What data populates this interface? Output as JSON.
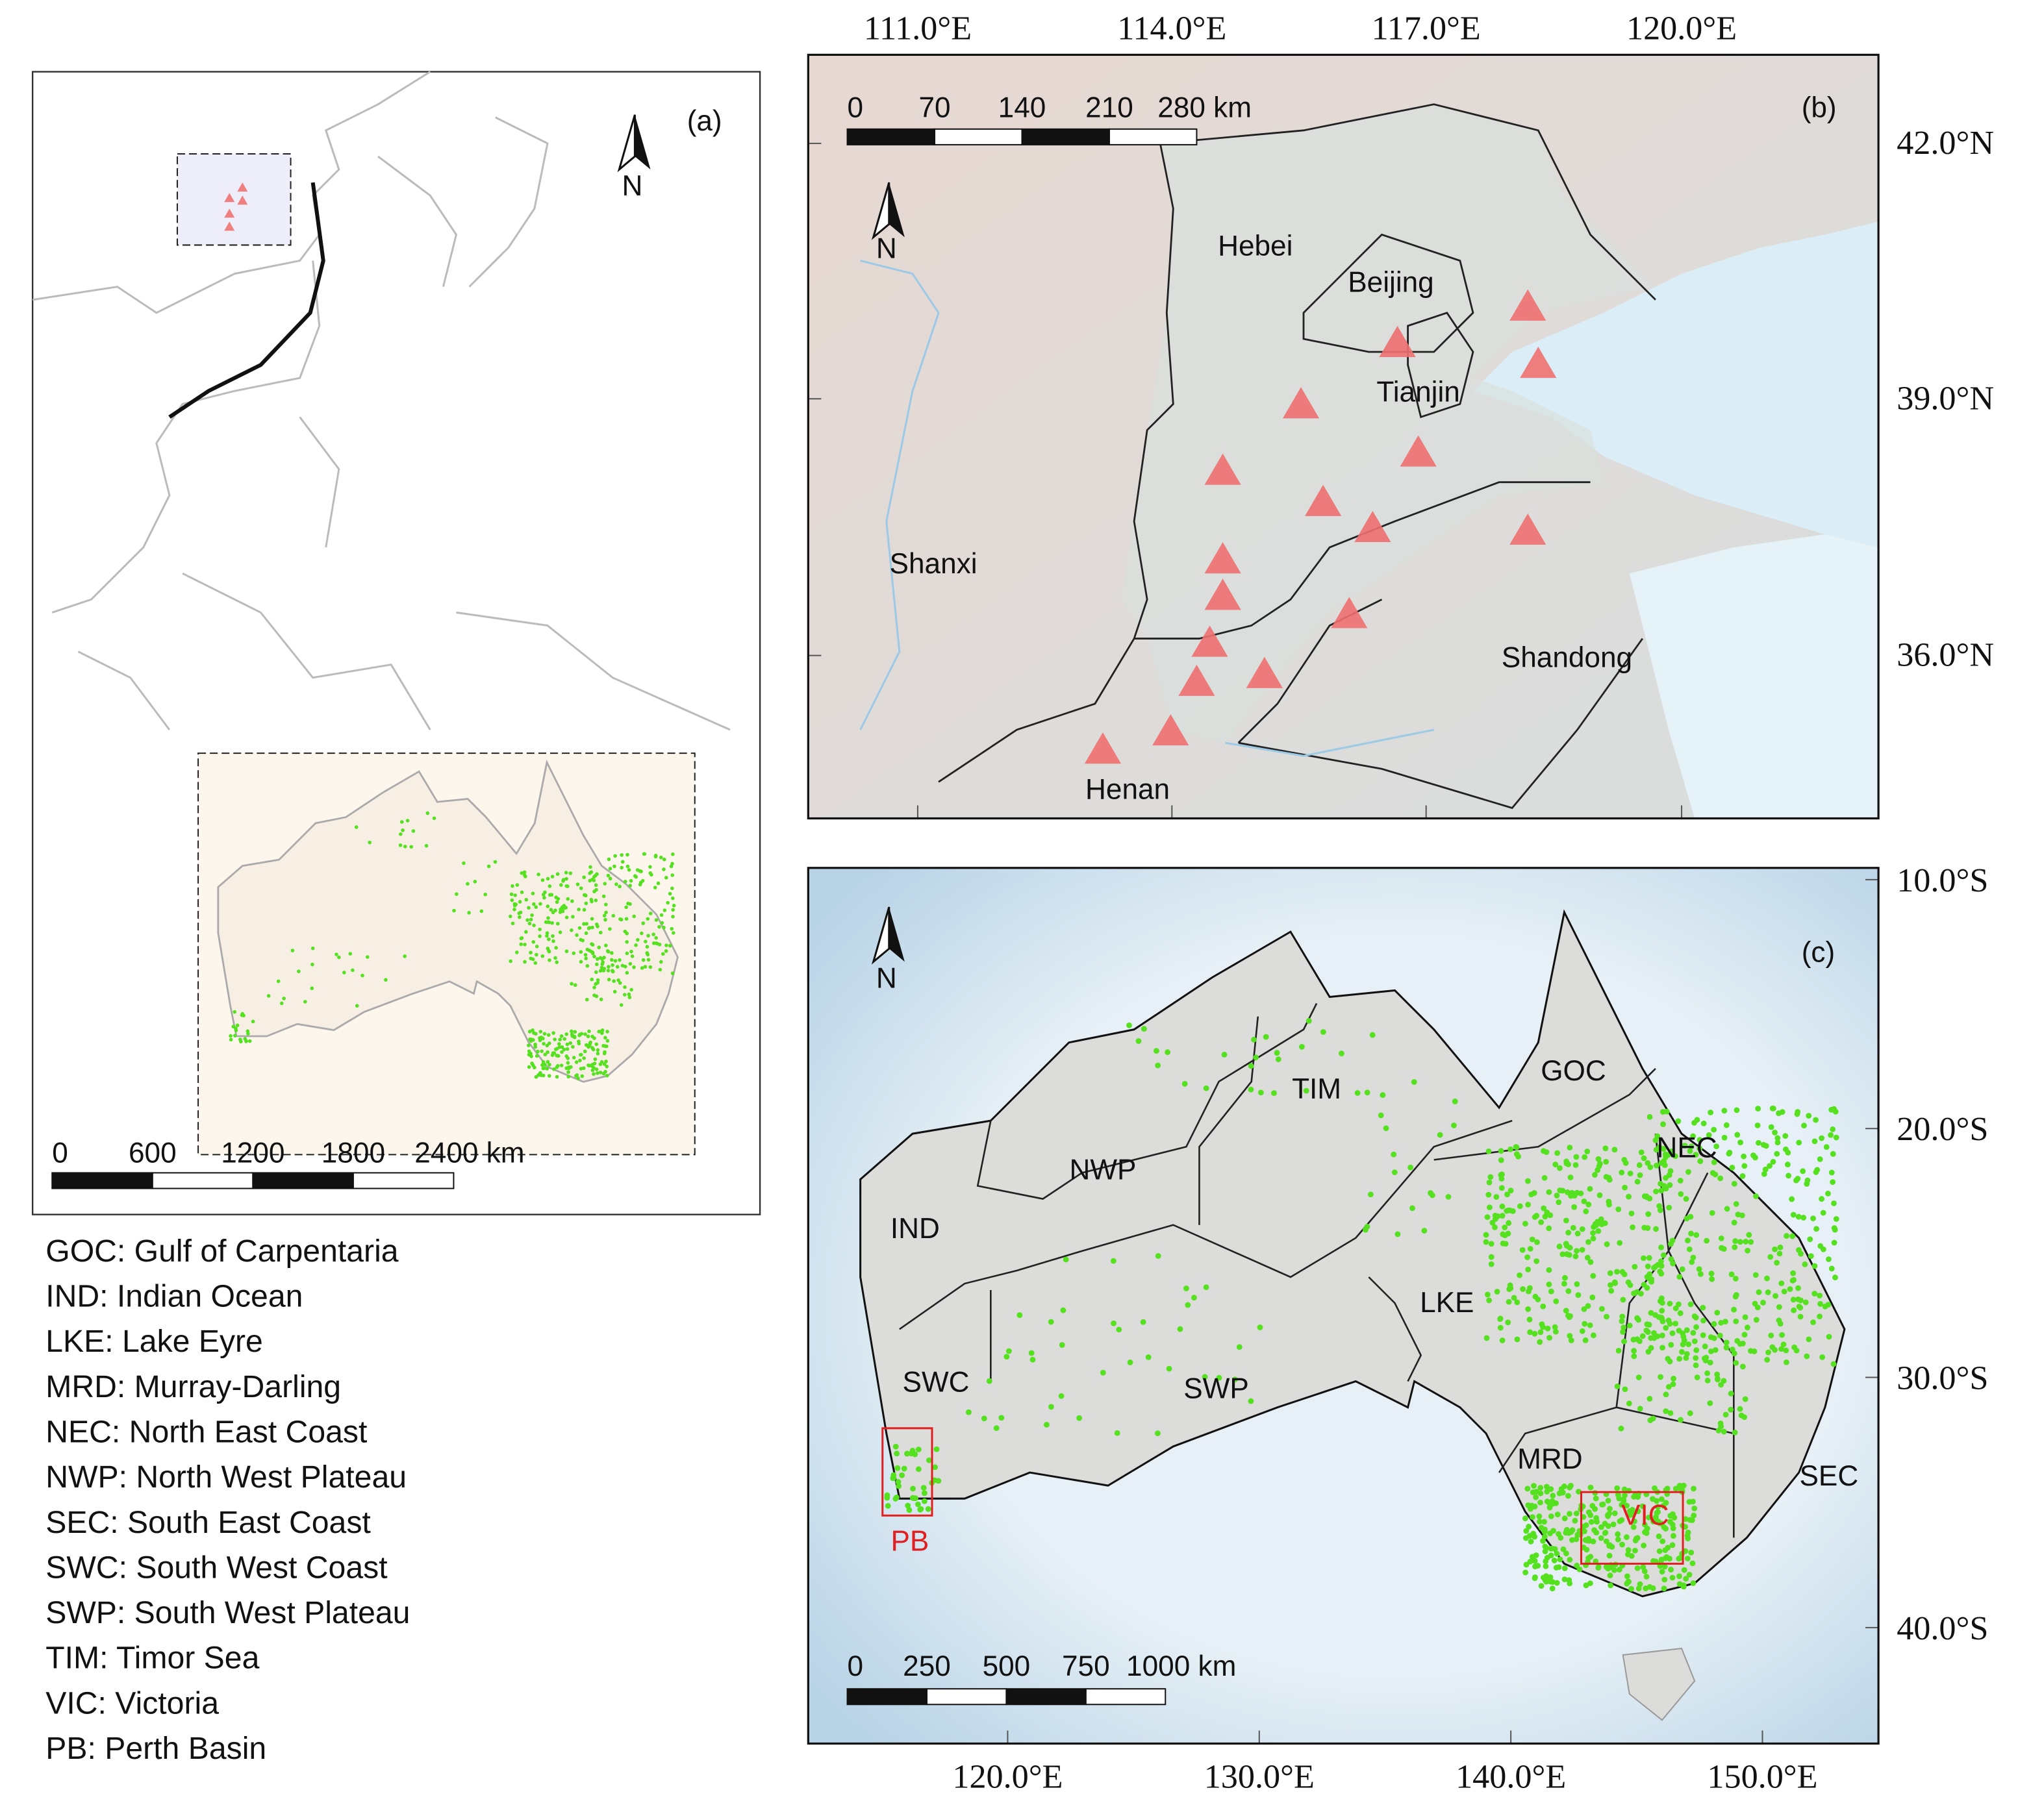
{
  "panel_a": {
    "label": "(a)",
    "north": "N",
    "scale_labels": [
      "0",
      "600",
      "1200",
      "1800",
      "2400 km"
    ]
  },
  "panel_b": {
    "label": "(b)",
    "north": "N",
    "scale_labels": [
      "0",
      "70",
      "140",
      "210",
      "280 km"
    ],
    "lon_ticks": [
      "111.0°E",
      "114.0°E",
      "117.0°E",
      "120.0°E"
    ],
    "lat_ticks": [
      "42.0°N",
      "39.0°N",
      "36.0°N"
    ],
    "regions": [
      "Hebei",
      "Beijing",
      "Tianjin",
      "Shanxi",
      "Shandong",
      "Henan"
    ]
  },
  "panel_c": {
    "label": "(c)",
    "north": "N",
    "scale_labels": [
      "0",
      "250",
      "500",
      "750",
      "1000 km"
    ],
    "lon_ticks": [
      "120.0°E",
      "130.0°E",
      "140.0°E",
      "150.0°E"
    ],
    "lat_ticks": [
      "10.0°S",
      "20.0°S",
      "30.0°S",
      "40.0°S"
    ],
    "regions": [
      "TIM",
      "GOC",
      "NWP",
      "NEC",
      "IND",
      "LKE",
      "SWC",
      "SWP",
      "MRD",
      "SEC"
    ],
    "boxes": [
      "VIC",
      "PB"
    ]
  },
  "legend": [
    "GOC: Gulf of Carpentaria",
    "IND: Indian Ocean",
    "LKE: Lake Eyre",
    "MRD: Murray-Darling",
    "NEC: North East Coast",
    "NWP: North West Plateau",
    "SEC: South East Coast",
    "SWC: South West Coast",
    "SWP: South West Plateau",
    "TIM: Timor Sea",
    "VIC: Victoria",
    "PB: Perth Basin"
  ]
}
